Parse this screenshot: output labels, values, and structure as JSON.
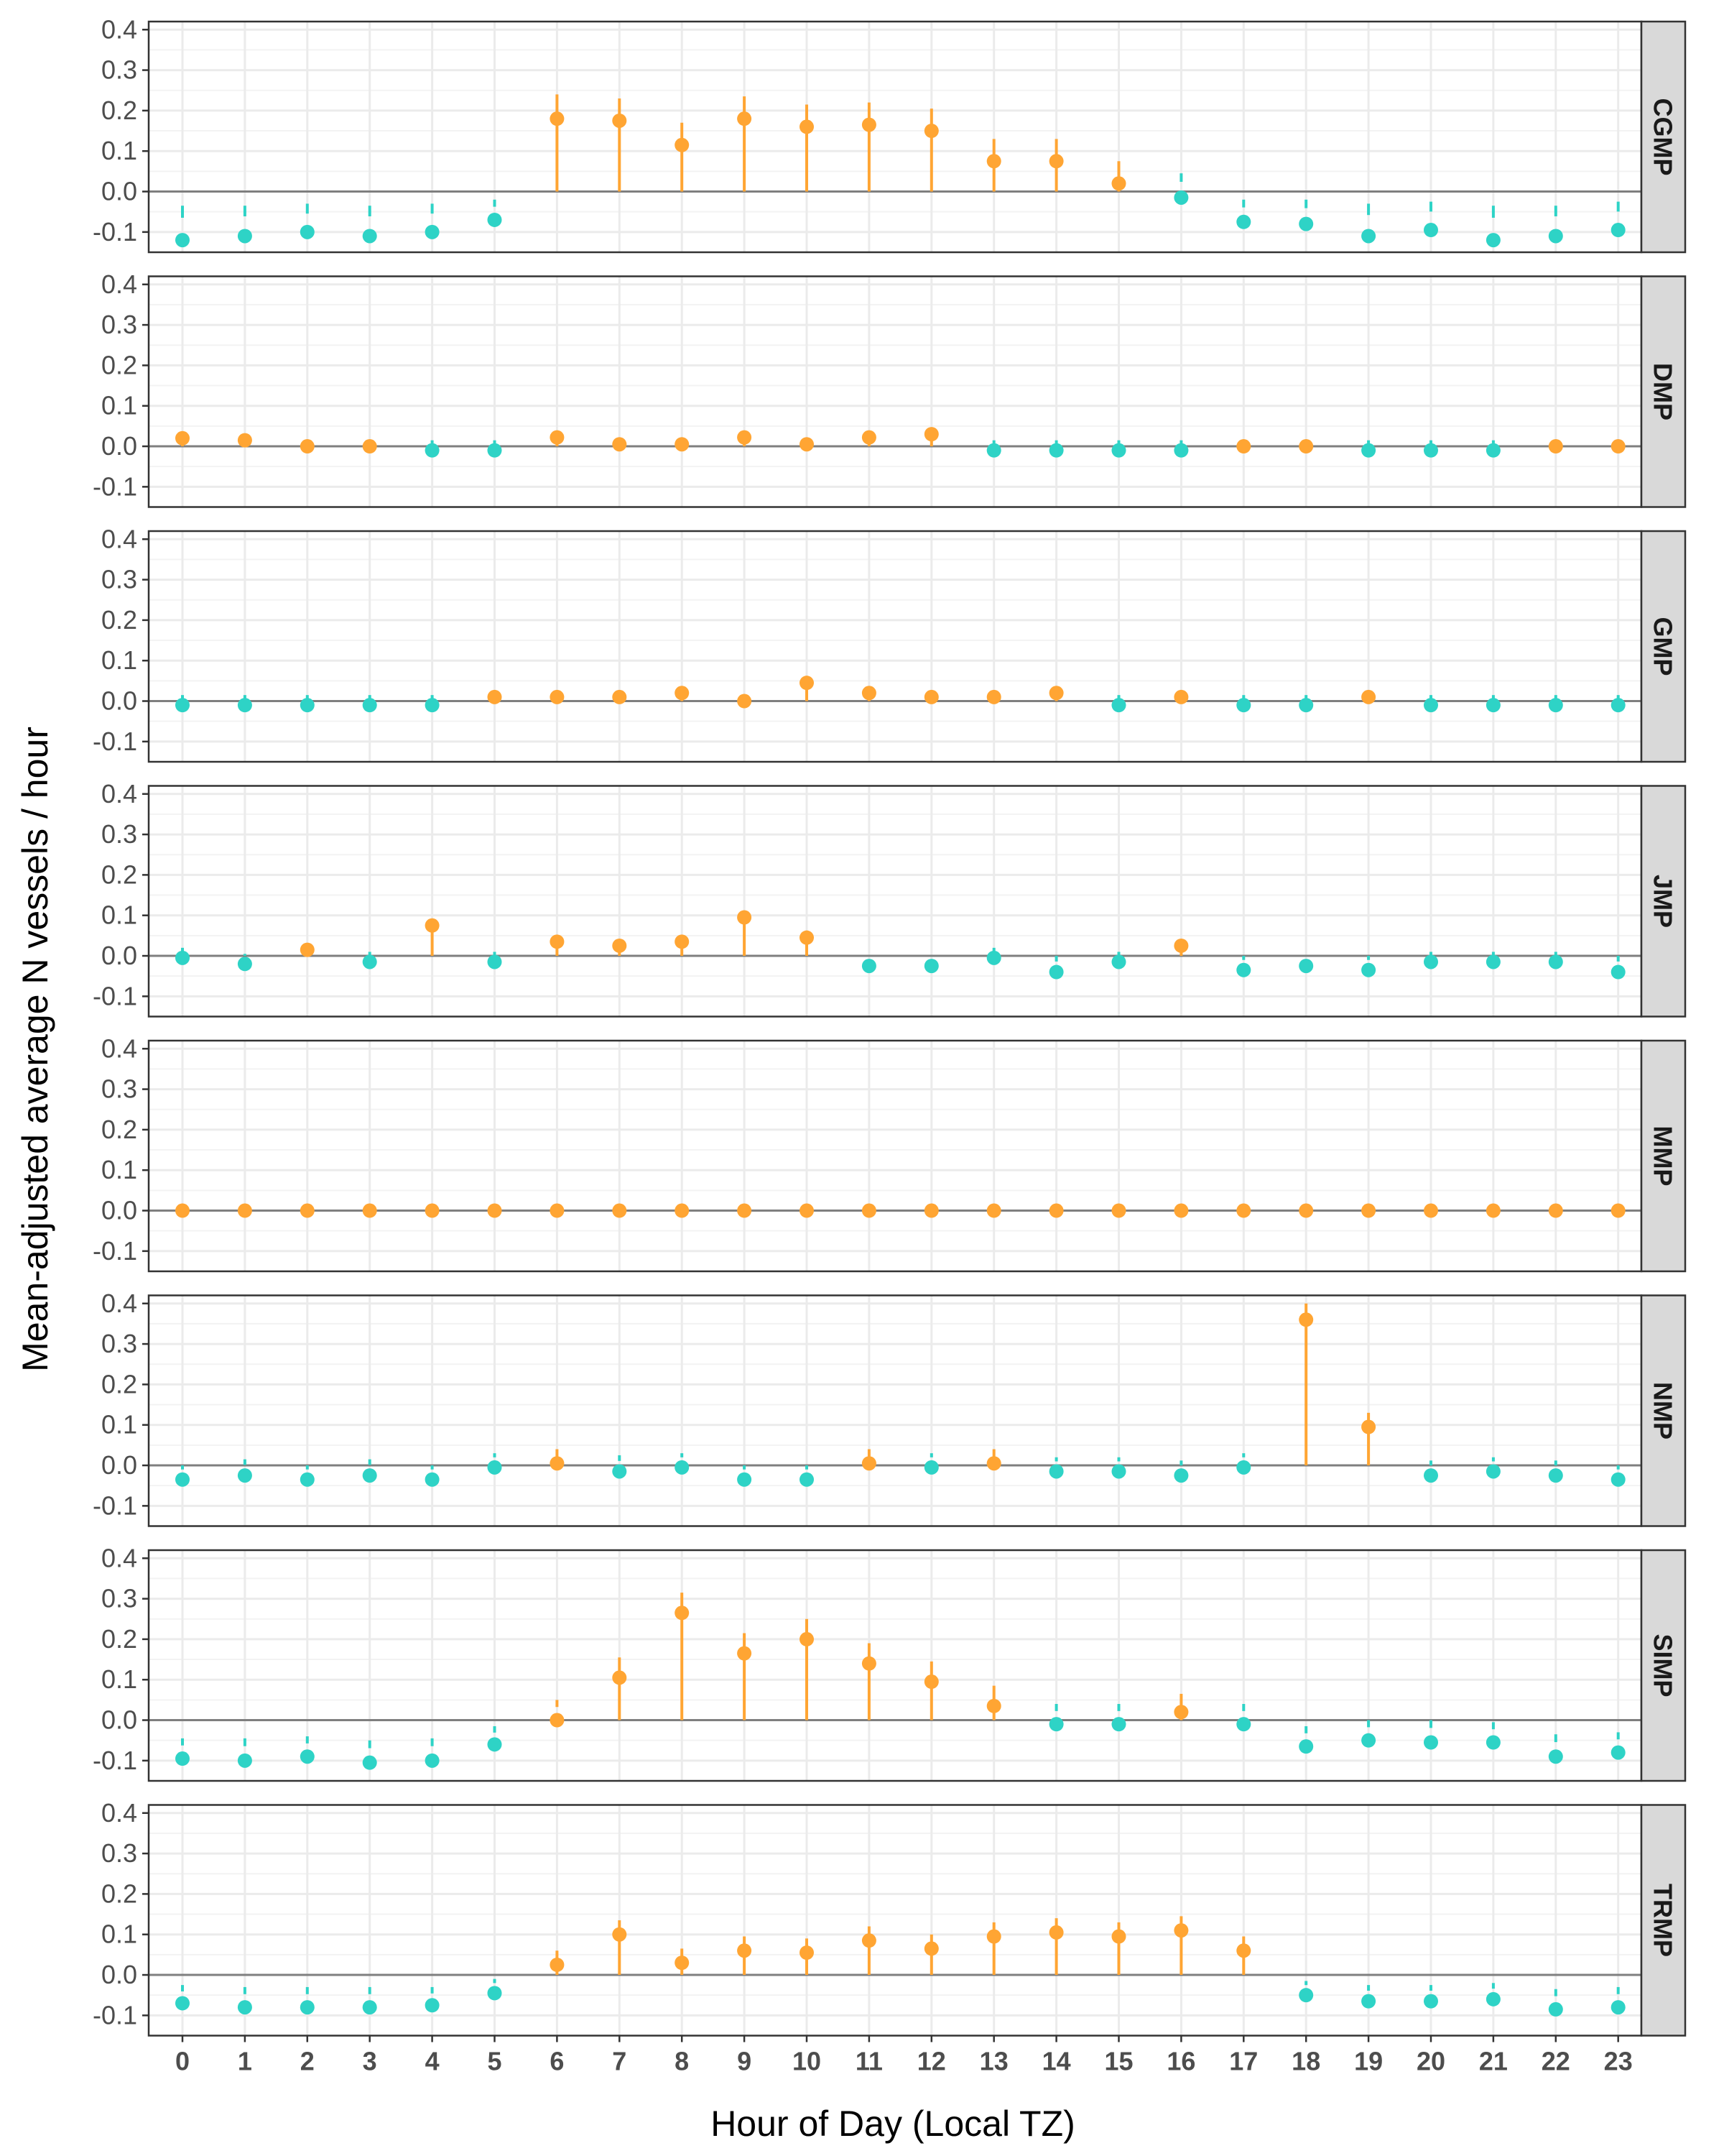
{
  "chart_data": {
    "type": "scatter",
    "subtype": "faceted point-range (lollipop) plot",
    "xlabel": "Hour of Day (Local TZ)",
    "ylabel": "Mean-adjusted average N vessels / hour",
    "x": [
      0,
      1,
      2,
      3,
      4,
      5,
      6,
      7,
      8,
      9,
      10,
      11,
      12,
      13,
      14,
      15,
      16,
      17,
      18,
      19,
      20,
      21,
      22,
      23
    ],
    "ylim": [
      -0.15,
      0.42
    ],
    "yticks": [
      -0.1,
      0.0,
      0.1,
      0.2,
      0.3,
      0.4
    ],
    "ytick_labels": [
      "-0.1",
      "0.0",
      "0.1",
      "0.2",
      "0.3",
      "0.4"
    ],
    "grid": true,
    "facet_strip_position": "right",
    "colors": {
      "positive": "#FFA533",
      "negative": "#2ED3C6",
      "zero_line": "#7f7f7f",
      "grid": "#ebebeb",
      "strip": "#d9d9d9"
    },
    "panels": [
      {
        "label": "CGMP",
        "values": [
          -0.12,
          -0.11,
          -0.1,
          -0.11,
          -0.1,
          -0.07,
          0.18,
          0.175,
          0.115,
          0.18,
          0.16,
          0.165,
          0.15,
          0.075,
          0.075,
          0.02,
          -0.015,
          -0.075,
          -0.08,
          -0.11,
          -0.095,
          -0.12,
          -0.11,
          -0.095
        ],
        "upper": [
          -0.035,
          -0.035,
          -0.03,
          -0.035,
          -0.03,
          -0.02,
          0.24,
          0.23,
          0.17,
          0.235,
          0.215,
          0.22,
          0.205,
          0.13,
          0.13,
          0.075,
          0.045,
          -0.02,
          -0.02,
          -0.03,
          -0.025,
          -0.035,
          -0.035,
          -0.025
        ]
      },
      {
        "label": "DMP",
        "values": [
          0.02,
          0.015,
          0.0,
          0.0,
          -0.01,
          -0.01,
          0.022,
          0.005,
          0.005,
          0.022,
          0.005,
          0.022,
          0.03,
          -0.01,
          -0.01,
          -0.01,
          -0.01,
          0.0,
          0.0,
          -0.01,
          -0.01,
          -0.01,
          0.0,
          0.0
        ],
        "upper": [
          0.03,
          0.02,
          0.0,
          0.0,
          0.0,
          0.0,
          0.03,
          0.01,
          0.01,
          0.03,
          0.01,
          0.03,
          0.04,
          0.0,
          0.0,
          0.0,
          0.0,
          0.0,
          0.0,
          0.0,
          0.0,
          0.0,
          0.0,
          0.0
        ]
      },
      {
        "label": "GMP",
        "values": [
          -0.01,
          -0.01,
          -0.01,
          -0.01,
          -0.01,
          0.01,
          0.01,
          0.01,
          0.02,
          0.0,
          0.045,
          0.02,
          0.01,
          0.01,
          0.02,
          -0.01,
          0.01,
          -0.01,
          -0.01,
          0.01,
          -0.01,
          -0.01,
          -0.01,
          -0.01
        ],
        "upper": [
          0.0,
          0.0,
          0.0,
          0.0,
          0.0,
          0.015,
          0.015,
          0.015,
          0.025,
          0.0,
          0.06,
          0.025,
          0.015,
          0.015,
          0.025,
          0.0,
          0.015,
          0.0,
          0.0,
          0.015,
          0.0,
          0.0,
          0.0,
          0.0
        ]
      },
      {
        "label": "JMP",
        "values": [
          -0.005,
          -0.02,
          0.015,
          -0.015,
          0.075,
          -0.015,
          0.035,
          0.025,
          0.035,
          0.095,
          0.045,
          -0.025,
          -0.025,
          -0.005,
          -0.04,
          -0.015,
          0.025,
          -0.035,
          -0.025,
          -0.035,
          -0.015,
          -0.015,
          -0.015,
          -0.04
        ],
        "upper": [
          0.0,
          0.0,
          0.02,
          0.0,
          0.09,
          0.0,
          0.045,
          0.035,
          0.045,
          0.11,
          0.055,
          0.0,
          0.0,
          0.0,
          0.0,
          0.0,
          0.03,
          0.0,
          0.0,
          0.0,
          0.0,
          0.0,
          0.0,
          0.0
        ]
      },
      {
        "label": "MMP",
        "values": [
          0,
          0,
          0,
          0,
          0,
          0,
          0,
          0,
          0,
          0,
          0,
          0,
          0,
          0,
          0,
          0,
          0,
          0,
          0,
          0,
          0,
          0,
          0,
          0
        ],
        "upper": [
          0,
          0,
          0,
          0,
          0,
          0,
          0,
          0,
          0,
          0,
          0,
          0,
          0,
          0,
          0,
          0,
          0,
          0,
          0,
          0,
          0,
          0,
          0,
          0
        ]
      },
      {
        "label": "NMP",
        "values": [
          -0.035,
          -0.025,
          -0.035,
          -0.025,
          -0.035,
          -0.005,
          0.005,
          -0.015,
          -0.005,
          -0.035,
          -0.035,
          0.005,
          -0.005,
          0.005,
          -0.015,
          -0.015,
          -0.025,
          -0.005,
          0.36,
          0.095,
          -0.025,
          -0.015,
          -0.025,
          -0.035
        ],
        "upper": [
          0.0,
          0.015,
          0.0,
          0.015,
          0.0,
          0.03,
          0.04,
          0.025,
          0.03,
          0.0,
          0.0,
          0.04,
          0.03,
          0.04,
          0.02,
          0.02,
          0.012,
          0.03,
          0.4,
          0.13,
          0.012,
          0.02,
          0.012,
          0.0
        ]
      },
      {
        "label": "SIMP",
        "values": [
          -0.095,
          -0.1,
          -0.09,
          -0.105,
          -0.1,
          -0.06,
          0.0,
          0.105,
          0.265,
          0.165,
          0.2,
          0.14,
          0.095,
          0.035,
          -0.01,
          -0.01,
          0.02,
          -0.01,
          -0.065,
          -0.05,
          -0.055,
          -0.055,
          -0.09,
          -0.08
        ],
        "upper": [
          -0.045,
          -0.045,
          -0.04,
          -0.05,
          -0.045,
          -0.015,
          0.05,
          0.155,
          0.315,
          0.215,
          0.25,
          0.19,
          0.145,
          0.085,
          0.04,
          0.04,
          0.065,
          0.04,
          -0.015,
          0.0,
          0.0,
          -0.005,
          -0.035,
          -0.03
        ]
      },
      {
        "label": "TRMP",
        "values": [
          -0.07,
          -0.08,
          -0.08,
          -0.08,
          -0.075,
          -0.045,
          0.025,
          0.1,
          0.03,
          0.06,
          0.055,
          0.085,
          0.065,
          0.095,
          0.105,
          0.095,
          0.11,
          0.06,
          -0.05,
          -0.065,
          -0.065,
          -0.06,
          -0.085,
          -0.08
        ],
        "upper": [
          -0.025,
          -0.03,
          -0.03,
          -0.03,
          -0.03,
          -0.01,
          0.06,
          0.135,
          0.065,
          0.095,
          0.09,
          0.12,
          0.1,
          0.13,
          0.14,
          0.13,
          0.145,
          0.095,
          -0.015,
          -0.025,
          -0.025,
          -0.02,
          -0.035,
          -0.03
        ]
      }
    ]
  }
}
